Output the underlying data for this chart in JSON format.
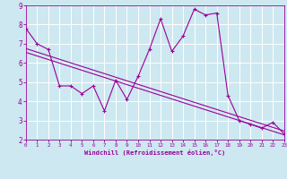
{
  "xlabel": "Windchill (Refroidissement éolien,°C)",
  "x_values": [
    0,
    1,
    2,
    3,
    4,
    5,
    6,
    7,
    8,
    9,
    10,
    11,
    12,
    13,
    14,
    15,
    16,
    17,
    18,
    19,
    20,
    21,
    22,
    23
  ],
  "y_main": [
    7.8,
    7.0,
    6.7,
    4.8,
    4.8,
    4.4,
    4.8,
    3.5,
    5.1,
    4.1,
    5.3,
    6.7,
    8.3,
    6.6,
    7.4,
    8.8,
    8.5,
    8.6,
    4.3,
    3.0,
    2.8,
    2.6,
    2.9,
    2.3
  ],
  "trend1_x": [
    0,
    23
  ],
  "trend1_y": [
    6.75,
    2.45
  ],
  "trend2_x": [
    0,
    23
  ],
  "trend2_y": [
    6.55,
    2.25
  ],
  "line_color": "#990099",
  "bg_color": "#cde8f0",
  "grid_color": "#ffffff",
  "xlim": [
    0,
    23
  ],
  "ylim": [
    2,
    9
  ],
  "yticks": [
    2,
    3,
    4,
    5,
    6,
    7,
    8,
    9
  ],
  "xticks": [
    0,
    1,
    2,
    3,
    4,
    5,
    6,
    7,
    8,
    9,
    10,
    11,
    12,
    13,
    14,
    15,
    16,
    17,
    18,
    19,
    20,
    21,
    22,
    23
  ]
}
